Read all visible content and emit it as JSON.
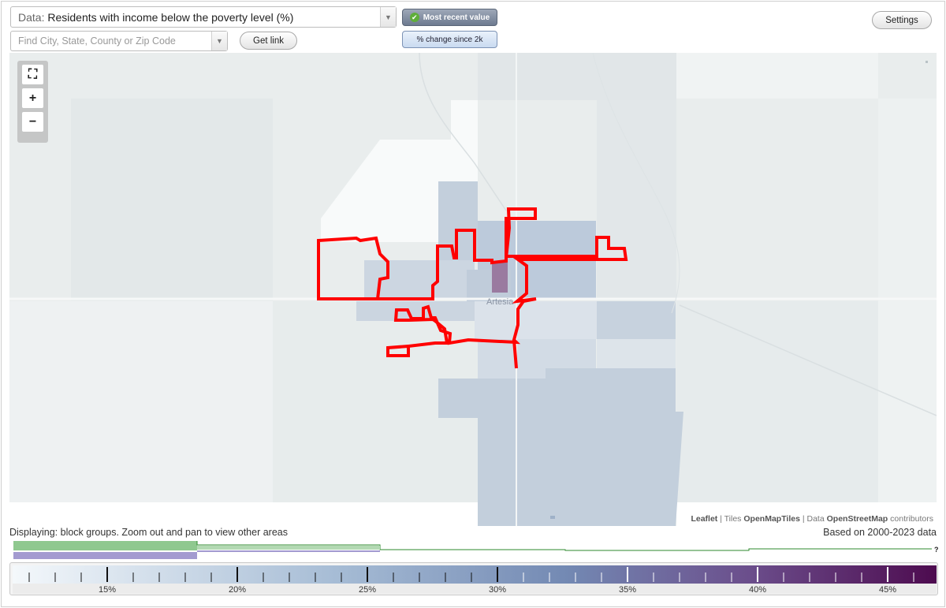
{
  "data_selector": {
    "prefix": "Data:",
    "value": "Residents with income below the poverty level (%)"
  },
  "search": {
    "placeholder": "Find City, State, County or Zip Code"
  },
  "buttons": {
    "get_link": "Get link",
    "settings": "Settings",
    "most_recent": "Most recent value",
    "pct_change": "% change since 2k"
  },
  "zoom": {
    "fullscreen": "⛶",
    "zoom_in": "+",
    "zoom_out": "−"
  },
  "map": {
    "place_label": "Artesia",
    "attribution": {
      "leaflet": "Leaflet",
      "sep1": " | Tiles ",
      "tiles": "OpenMapTiles",
      "sep2": " | Data ",
      "osm": "OpenStreetMap",
      "tail": " contributors"
    },
    "highlight_color": "#ff0000"
  },
  "status": {
    "displaying": "Displaying: block groups. Zoom out and pan to view other areas",
    "based_on": "Based on 2000-2023 data"
  },
  "histogram": {
    "help": "?"
  },
  "legend": {
    "ticks": [
      "15%",
      "20%",
      "25%",
      "30%",
      "35%",
      "40%",
      "45%"
    ],
    "color_low": "#f4f8fb",
    "color_mid": "#8ea6c9",
    "color_high": "#4d0b4f"
  }
}
